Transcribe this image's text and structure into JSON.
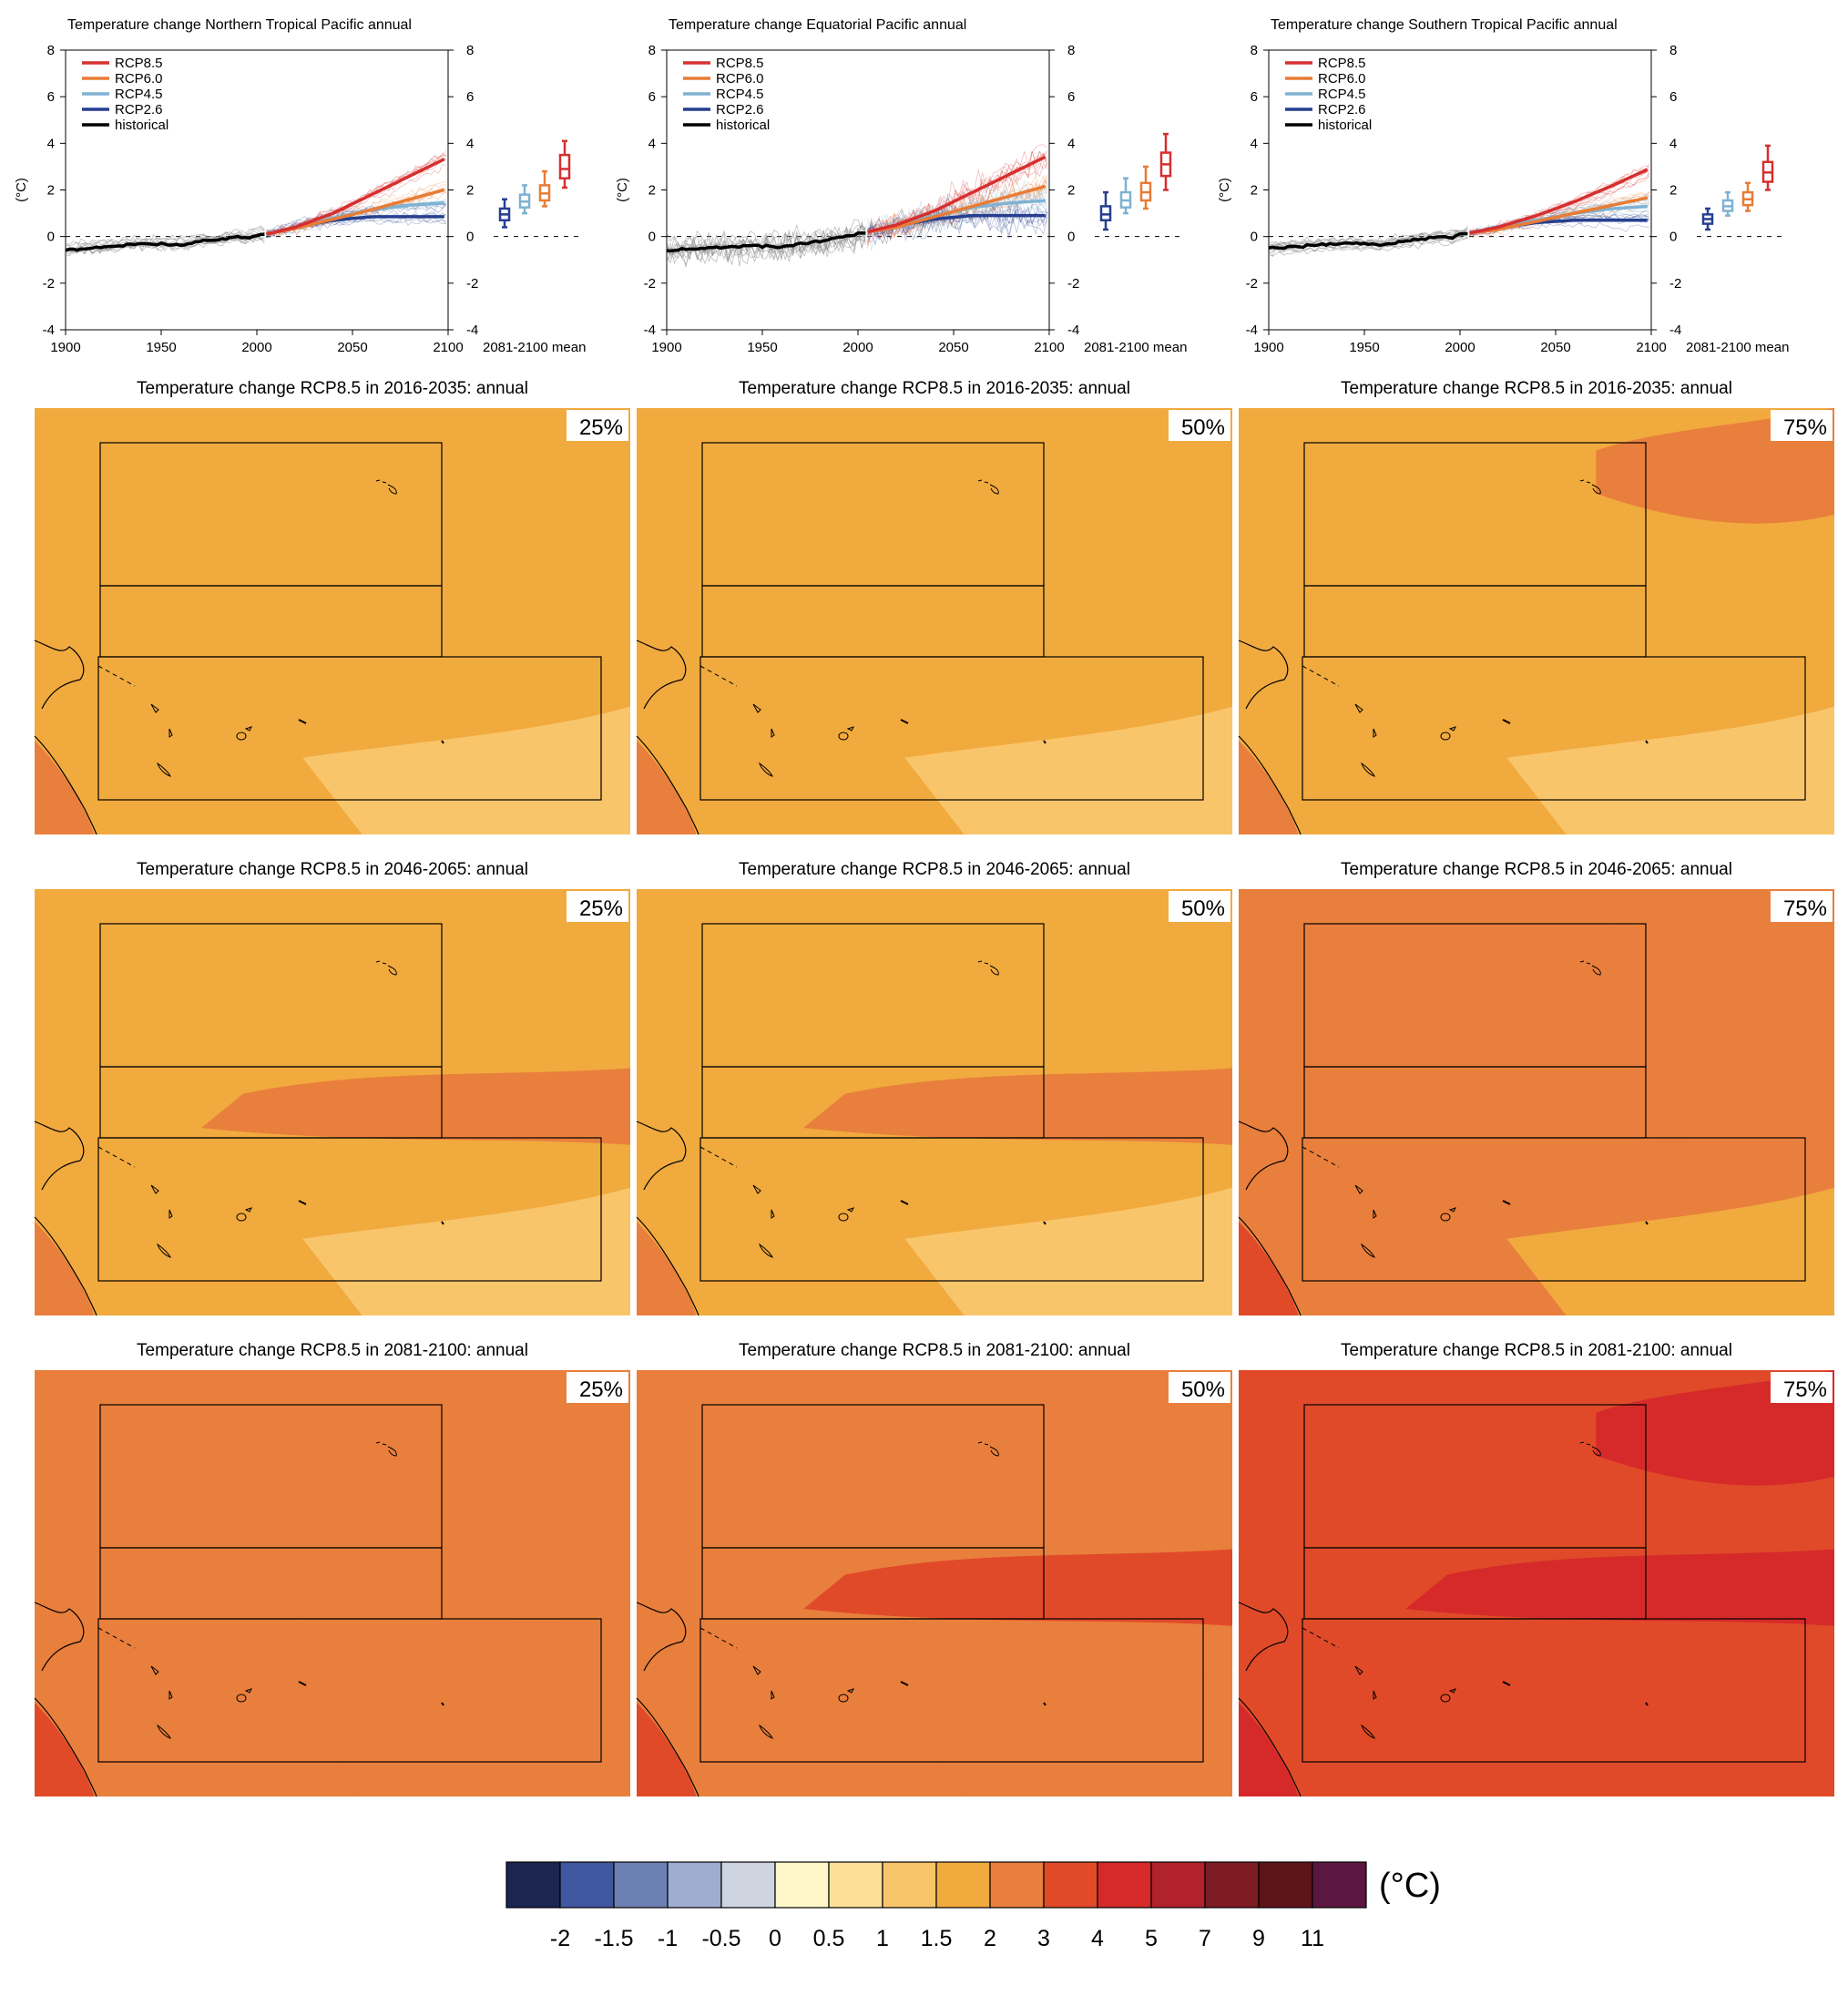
{
  "colors": {
    "rcp85": "#d62f2f",
    "rcp60": "#e87c35",
    "rcp45": "#7fb2d3",
    "rcp26": "#263f8f",
    "historical": "#000000",
    "ensemble_grey": "#8a8a8a"
  },
  "colorbar": {
    "ticks": [
      "-2",
      "-1.5",
      "-1",
      "-0.5",
      "0",
      "0.5",
      "1",
      "1.5",
      "2",
      "3",
      "4",
      "5",
      "7",
      "9",
      "11"
    ],
    "colors": [
      "#1c2450",
      "#3f58a0",
      "#6d80b4",
      "#9eadd0",
      "#cfd4e1",
      "#fff6c9",
      "#fedf98",
      "#f9c56b",
      "#f1aa3e",
      "#e97f3c",
      "#e04a29",
      "#d62a2a",
      "#b2222d",
      "#7d1b23",
      "#5d1419",
      "#5c1740"
    ],
    "unit": "(°C)"
  },
  "chart_data": [
    {
      "type": "line",
      "title": "Temperature change Northern Tropical Pacific annual",
      "ylabel": "(°C)",
      "xlim": [
        1900,
        2100
      ],
      "ylim": [
        -4,
        8
      ],
      "xticks": [
        "1900",
        "1950",
        "2000",
        "2050",
        "2100"
      ],
      "yticks": [
        "-4",
        "-2",
        "0",
        "2",
        "4",
        "6",
        "8"
      ],
      "legend": [
        "RCP8.5",
        "RCP6.0",
        "RCP4.5",
        "RCP2.6",
        "historical"
      ],
      "legend_position": "top-left",
      "boxplot_label": "2081-2100 mean",
      "series": [
        {
          "name": "historical",
          "x": [
            1900,
            1920,
            1940,
            1960,
            1970,
            1980,
            1990,
            1995,
            2000,
            2005
          ],
          "y": [
            -0.6,
            -0.45,
            -0.3,
            -0.35,
            -0.2,
            -0.15,
            0.0,
            -0.1,
            0.05,
            0.1
          ]
        },
        {
          "name": "RCP8.5",
          "x": [
            2005,
            2020,
            2040,
            2060,
            2080,
            2100
          ],
          "y": [
            0.1,
            0.4,
            1.0,
            1.8,
            2.6,
            3.4
          ]
        },
        {
          "name": "RCP6.0",
          "x": [
            2005,
            2020,
            2040,
            2060,
            2080,
            2100
          ],
          "y": [
            0.1,
            0.35,
            0.75,
            1.15,
            1.6,
            2.05
          ]
        },
        {
          "name": "RCP4.5",
          "x": [
            2005,
            2020,
            2040,
            2060,
            2080,
            2100
          ],
          "y": [
            0.1,
            0.4,
            0.8,
            1.15,
            1.35,
            1.45
          ]
        },
        {
          "name": "RCP2.6",
          "x": [
            2005,
            2020,
            2040,
            2060,
            2080,
            2100
          ],
          "y": [
            0.1,
            0.4,
            0.7,
            0.85,
            0.85,
            0.85
          ]
        }
      ],
      "boxes": [
        {
          "name": "RCP2.6",
          "min": 0.4,
          "q1": 0.7,
          "median": 0.95,
          "q3": 1.2,
          "max": 1.6
        },
        {
          "name": "RCP4.5",
          "min": 1.0,
          "q1": 1.25,
          "median": 1.5,
          "q3": 1.8,
          "max": 2.2
        },
        {
          "name": "RCP6.0",
          "min": 1.3,
          "q1": 1.55,
          "median": 1.85,
          "q3": 2.2,
          "max": 2.8
        },
        {
          "name": "RCP8.5",
          "min": 2.1,
          "q1": 2.5,
          "median": 2.9,
          "q3": 3.5,
          "max": 4.1
        }
      ]
    },
    {
      "type": "line",
      "title": "Temperature change Equatorial Pacific annual",
      "ylabel": "(°C)",
      "xlim": [
        1900,
        2100
      ],
      "ylim": [
        -4,
        8
      ],
      "xticks": [
        "1900",
        "1950",
        "2000",
        "2050",
        "2100"
      ],
      "yticks": [
        "-4",
        "-2",
        "0",
        "2",
        "4",
        "6",
        "8"
      ],
      "legend": [
        "RCP8.5",
        "RCP6.0",
        "RCP4.5",
        "RCP2.6",
        "historical"
      ],
      "legend_position": "top-left",
      "boxplot_label": "2081-2100 mean",
      "series": [
        {
          "name": "historical",
          "x": [
            1900,
            1920,
            1940,
            1960,
            1970,
            1980,
            1990,
            1995,
            2000,
            2005
          ],
          "y": [
            -0.6,
            -0.5,
            -0.4,
            -0.45,
            -0.3,
            -0.2,
            -0.05,
            0.0,
            0.1,
            0.2
          ]
        },
        {
          "name": "RCP8.5",
          "x": [
            2005,
            2020,
            2040,
            2060,
            2080,
            2100
          ],
          "y": [
            0.2,
            0.5,
            1.1,
            1.9,
            2.7,
            3.5
          ]
        },
        {
          "name": "RCP6.0",
          "x": [
            2005,
            2020,
            2040,
            2060,
            2080,
            2100
          ],
          "y": [
            0.2,
            0.4,
            0.85,
            1.3,
            1.75,
            2.2
          ]
        },
        {
          "name": "RCP4.5",
          "x": [
            2005,
            2020,
            2040,
            2060,
            2080,
            2100
          ],
          "y": [
            0.2,
            0.45,
            0.9,
            1.25,
            1.45,
            1.55
          ]
        },
        {
          "name": "RCP2.6",
          "x": [
            2005,
            2020,
            2040,
            2060,
            2080,
            2100
          ],
          "y": [
            0.2,
            0.45,
            0.75,
            0.9,
            0.9,
            0.9
          ]
        }
      ],
      "boxes": [
        {
          "name": "RCP2.6",
          "min": 0.3,
          "q1": 0.7,
          "median": 0.95,
          "q3": 1.3,
          "max": 1.9
        },
        {
          "name": "RCP4.5",
          "min": 1.0,
          "q1": 1.25,
          "median": 1.55,
          "q3": 1.9,
          "max": 2.5
        },
        {
          "name": "RCP6.0",
          "min": 1.2,
          "q1": 1.55,
          "median": 1.9,
          "q3": 2.3,
          "max": 3.0
        },
        {
          "name": "RCP8.5",
          "min": 2.0,
          "q1": 2.6,
          "median": 3.1,
          "q3": 3.6,
          "max": 4.4
        }
      ]
    },
    {
      "type": "line",
      "title": "Temperature change Southern Tropical Pacific annual",
      "ylabel": "(°C)",
      "xlim": [
        1900,
        2100
      ],
      "ylim": [
        -4,
        8
      ],
      "xticks": [
        "1900",
        "1950",
        "2000",
        "2050",
        "2100"
      ],
      "yticks": [
        "-4",
        "-2",
        "0",
        "2",
        "4",
        "6",
        "8"
      ],
      "legend": [
        "RCP8.5",
        "RCP6.0",
        "RCP4.5",
        "RCP2.6",
        "historical"
      ],
      "legend_position": "top-left",
      "boxplot_label": "2081-2100 mean",
      "series": [
        {
          "name": "historical",
          "x": [
            1900,
            1920,
            1940,
            1960,
            1970,
            1980,
            1990,
            1995,
            2000,
            2005
          ],
          "y": [
            -0.5,
            -0.4,
            -0.3,
            -0.35,
            -0.2,
            -0.1,
            0.0,
            -0.05,
            0.1,
            0.15
          ]
        },
        {
          "name": "RCP8.5",
          "x": [
            2005,
            2020,
            2040,
            2060,
            2080,
            2100
          ],
          "y": [
            0.15,
            0.4,
            0.9,
            1.5,
            2.2,
            2.95
          ]
        },
        {
          "name": "RCP6.0",
          "x": [
            2005,
            2020,
            2040,
            2060,
            2080,
            2100
          ],
          "y": [
            0.15,
            0.3,
            0.65,
            1.0,
            1.35,
            1.7
          ]
        },
        {
          "name": "RCP4.5",
          "x": [
            2005,
            2020,
            2040,
            2060,
            2080,
            2100
          ],
          "y": [
            0.15,
            0.35,
            0.7,
            1.0,
            1.2,
            1.3
          ]
        },
        {
          "name": "RCP2.6",
          "x": [
            2005,
            2020,
            2040,
            2060,
            2080,
            2100
          ],
          "y": [
            0.15,
            0.35,
            0.6,
            0.7,
            0.7,
            0.7
          ]
        }
      ],
      "boxes": [
        {
          "name": "RCP2.6",
          "min": 0.3,
          "q1": 0.55,
          "median": 0.75,
          "q3": 0.95,
          "max": 1.2
        },
        {
          "name": "RCP4.5",
          "min": 0.9,
          "q1": 1.1,
          "median": 1.3,
          "q3": 1.55,
          "max": 1.9
        },
        {
          "name": "RCP6.0",
          "min": 1.1,
          "q1": 1.35,
          "median": 1.6,
          "q3": 1.9,
          "max": 2.3
        },
        {
          "name": "RCP8.5",
          "min": 2.0,
          "q1": 2.35,
          "median": 2.75,
          "q3": 3.2,
          "max": 3.9
        }
      ]
    },
    {
      "type": "heatmap",
      "maps": [
        {
          "title": "Temperature change RCP8.5 in 2016-2035: annual",
          "percentile": "25%",
          "base": 1.5
        },
        {
          "title": "Temperature change RCP8.5 in 2016-2035: annual",
          "percentile": "50%",
          "base": 1.5
        },
        {
          "title": "Temperature change RCP8.5 in 2016-2035: annual",
          "percentile": "75%",
          "base": 1.5
        },
        {
          "title": "Temperature change RCP8.5 in 2046-2065: annual",
          "percentile": "25%",
          "base": 1.7
        },
        {
          "title": "Temperature change RCP8.5 in 2046-2065: annual",
          "percentile": "50%",
          "base": 1.8
        },
        {
          "title": "Temperature change RCP8.5 in 2046-2065: annual",
          "percentile": "75%",
          "base": 2.2
        },
        {
          "title": "Temperature change RCP8.5 in 2081-2100: annual",
          "percentile": "25%",
          "base": 2.5
        },
        {
          "title": "Temperature change RCP8.5 in 2081-2100: annual",
          "percentile": "50%",
          "base": 2.8
        },
        {
          "title": "Temperature change RCP8.5 in 2081-2100: annual",
          "percentile": "75%",
          "base": 3.5
        }
      ]
    }
  ]
}
